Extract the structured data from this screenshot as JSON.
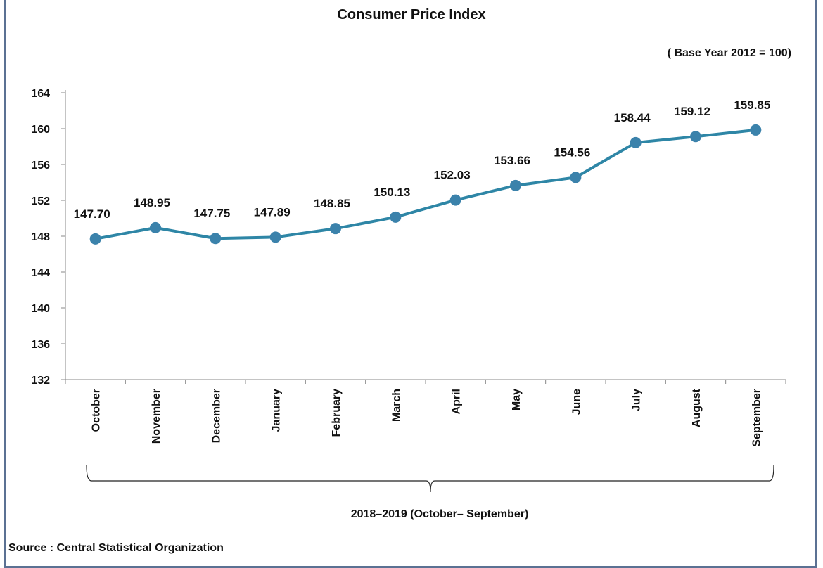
{
  "chart_data": {
    "type": "line",
    "title": "Consumer Price Index",
    "subtitle": "( Base Year 2012 = 100)",
    "xlabel": "2018–2019 (October– September)",
    "ylabel": "",
    "categories": [
      "October",
      "November",
      "December",
      "January",
      "February",
      "March",
      "April",
      "May",
      "June",
      "July",
      "August",
      "September"
    ],
    "values": [
      147.7,
      148.95,
      147.75,
      147.89,
      148.85,
      150.13,
      152.03,
      153.66,
      154.56,
      158.44,
      159.12,
      159.85
    ],
    "value_labels": [
      "147.70",
      "148.95",
      "147.75",
      "147.89",
      "148.85",
      "150.13",
      "152.03",
      "153.66",
      "154.56",
      "158.44",
      "159.12",
      "159.85"
    ],
    "ylim": [
      132,
      164
    ],
    "yticks": [
      "132",
      "136",
      "140",
      "144",
      "148",
      "152",
      "156",
      "160",
      "164"
    ],
    "grid": false,
    "colors": {
      "line": "#2e86a6",
      "marker": "#3b82ab",
      "frame": "#5b7193"
    }
  },
  "source": "Source : Central Statistical Organization"
}
